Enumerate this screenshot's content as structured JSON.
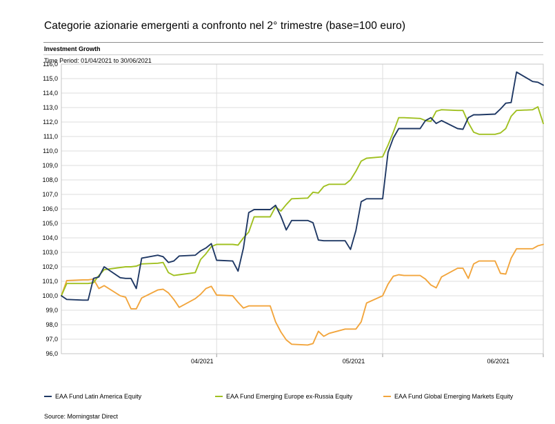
{
  "title": "Categorie azionarie emergenti a confronto nel 2° trimestre (base=100 euro)",
  "report": {
    "section_label": "Investment Growth",
    "time_period": "Time Period: 01/04/2021 to 30/06/2021",
    "source": "Source: Morningstar Direct"
  },
  "legend": {
    "items": [
      {
        "label": "EAA Fund Latin America Equity",
        "color": "#1f3864"
      },
      {
        "label": "EAA Fund Emerging Europe ex-Russia Equity",
        "color": "#a0c020"
      },
      {
        "label": "EAA Fund Global Emerging Markets Equity",
        "color": "#f2a53c"
      }
    ]
  },
  "chart_data": {
    "type": "line",
    "title": "Investment Growth",
    "xlabel": "",
    "ylabel": "",
    "ylim": [
      96,
      116
    ],
    "y_step": 1,
    "grid": true,
    "legend_position": "bottom",
    "y_tick_labels": [
      "116,0",
      "115,0",
      "114,0",
      "113,0",
      "112,0",
      "111,0",
      "110,0",
      "109,0",
      "108,0",
      "107,0",
      "106,0",
      "105,0",
      "104,0",
      "103,0",
      "102,0",
      "101,0",
      "100,0",
      "99,0",
      "98,0",
      "97,0",
      "96,0"
    ],
    "x_tick_labels": [
      "04/2021",
      "05/2021",
      "06/2021"
    ],
    "x_tick_offsets": [
      26.3,
      54.6,
      81.6
    ],
    "month_boundary_offsets": [
      29,
      60,
      90
    ],
    "x_start_date": "01/04/2021",
    "x_end_date": "30/06/2021",
    "calendar_span_days": 90,
    "calendar_offsets": [
      0,
      1,
      4,
      5,
      6,
      7,
      8,
      11,
      12,
      13,
      14,
      15,
      18,
      19,
      20,
      21,
      22,
      25,
      26,
      27,
      28,
      29,
      32,
      33,
      34,
      35,
      36,
      39,
      40,
      41,
      42,
      43,
      46,
      47,
      48,
      49,
      50,
      53,
      54,
      55,
      56,
      57,
      60,
      61,
      62,
      63,
      64,
      67,
      68,
      69,
      70,
      71,
      74,
      75,
      76,
      77,
      78,
      81,
      82,
      83,
      84,
      85,
      88,
      89,
      90
    ],
    "series": [
      {
        "name": "EAA Fund Latin America Equity",
        "color": "#1f3864",
        "values": [
          100.0,
          99.75,
          99.7,
          99.7,
          101.2,
          101.3,
          102.0,
          101.25,
          101.2,
          101.2,
          100.5,
          102.6,
          102.8,
          102.7,
          102.3,
          102.4,
          102.75,
          102.8,
          103.1,
          103.3,
          103.6,
          102.45,
          102.4,
          101.7,
          103.3,
          105.75,
          105.95,
          105.95,
          106.25,
          105.5,
          104.55,
          105.2,
          105.2,
          105.05,
          103.85,
          103.8,
          103.8,
          103.8,
          103.2,
          104.5,
          106.5,
          106.7,
          106.7,
          109.9,
          110.9,
          111.55,
          111.55,
          111.55,
          112.1,
          112.3,
          111.9,
          112.1,
          111.55,
          111.5,
          112.3,
          112.5,
          112.5,
          112.55,
          112.9,
          113.3,
          113.35,
          115.45,
          114.8,
          114.75,
          114.55
        ]
      },
      {
        "name": "EAA Fund Emerging Europe ex-Russia Equity",
        "color": "#a0c020",
        "values": [
          100.0,
          100.85,
          100.85,
          100.85,
          100.9,
          101.4,
          101.8,
          101.95,
          102.0,
          102.0,
          102.05,
          102.2,
          102.25,
          102.3,
          101.6,
          101.4,
          101.45,
          101.6,
          102.5,
          102.9,
          103.4,
          103.55,
          103.55,
          103.5,
          104.0,
          104.4,
          105.45,
          105.45,
          106.15,
          105.85,
          106.3,
          106.7,
          106.75,
          107.15,
          107.1,
          107.55,
          107.7,
          107.7,
          108.0,
          108.6,
          109.3,
          109.5,
          109.6,
          110.4,
          111.3,
          112.3,
          112.3,
          112.25,
          112.1,
          112.05,
          112.75,
          112.85,
          112.8,
          112.8,
          111.95,
          111.3,
          111.15,
          111.15,
          111.25,
          111.55,
          112.4,
          112.8,
          112.85,
          113.05,
          111.9
        ]
      },
      {
        "name": "EAA Fund Global Emerging Markets Equity",
        "color": "#f2a53c",
        "values": [
          100.0,
          101.05,
          101.1,
          101.1,
          101.15,
          100.5,
          100.7,
          100.0,
          99.9,
          99.1,
          99.1,
          99.85,
          100.4,
          100.45,
          100.2,
          99.75,
          99.2,
          99.8,
          100.1,
          100.5,
          100.65,
          100.05,
          100.0,
          99.55,
          99.15,
          99.3,
          99.3,
          99.3,
          98.2,
          97.5,
          96.95,
          96.65,
          96.6,
          96.7,
          97.55,
          97.2,
          97.4,
          97.7,
          97.7,
          97.7,
          98.2,
          99.5,
          100.0,
          100.8,
          101.35,
          101.45,
          101.4,
          101.4,
          101.15,
          100.75,
          100.55,
          101.3,
          101.9,
          101.9,
          101.2,
          102.2,
          102.4,
          102.4,
          101.55,
          101.5,
          102.6,
          103.25,
          103.25,
          103.45,
          103.55
        ]
      }
    ]
  }
}
